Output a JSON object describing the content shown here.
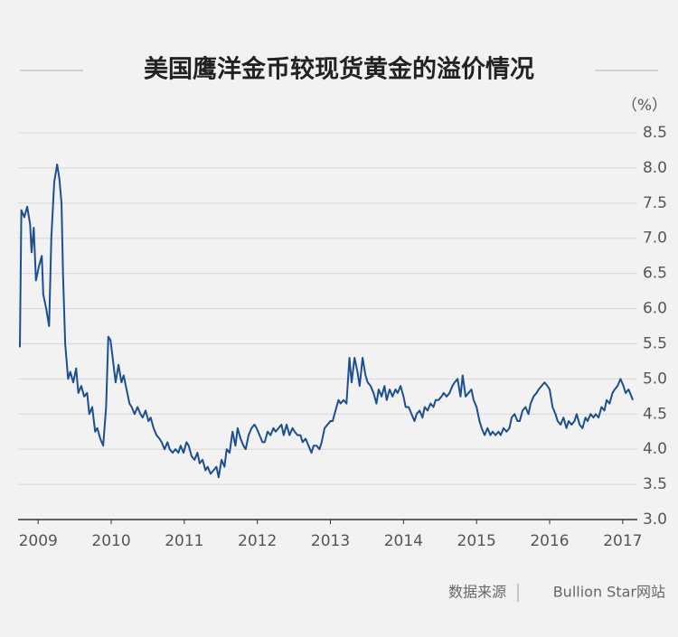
{
  "chart_data": {
    "type": "line",
    "title": "美国鹰洋金币较现货黄金的溢价情况",
    "y_label": "（%）",
    "source_label": "数据来源",
    "source": "Bullion Star网站",
    "color": "#1d4f8f",
    "grid": true,
    "xlim": [
      2008.75,
      2017.2
    ],
    "xticks": [
      2009,
      2010,
      2011,
      2012,
      2013,
      2014,
      2015,
      2016,
      2017
    ],
    "ylim": [
      3,
      8.5
    ],
    "yticks": [
      {
        "value": 3,
        "label": "3.0"
      },
      3.5,
      {
        "value": 4,
        "label": "4.0"
      },
      4.5,
      {
        "value": 5,
        "label": "5.0"
      },
      5.5,
      {
        "value": 6,
        "label": "6.0"
      },
      6.5,
      {
        "value": 7,
        "label": "7.0"
      },
      7.5,
      {
        "value": 8,
        "label": "8.0"
      },
      8.5
    ],
    "x": [
      2008.75,
      2008.77,
      2008.81,
      2008.85,
      2008.89,
      2008.91,
      2008.94,
      2008.97,
      2009.01,
      2009.05,
      2009.07,
      2009.11,
      2009.15,
      2009.18,
      2009.22,
      2009.26,
      2009.29,
      2009.32,
      2009.34,
      2009.37,
      2009.41,
      2009.44,
      2009.48,
      2009.52,
      2009.55,
      2009.59,
      2009.63,
      2009.67,
      2009.7,
      2009.74,
      2009.78,
      2009.81,
      2009.85,
      2009.89,
      2009.93,
      2009.96,
      2009.99,
      2010.02,
      2010.06,
      2010.1,
      2010.14,
      2010.17,
      2010.21,
      2010.25,
      2010.28,
      2010.32,
      2010.36,
      2010.4,
      2010.43,
      2010.47,
      2010.51,
      2010.54,
      2010.58,
      2010.62,
      2010.66,
      2010.69,
      2010.73,
      2010.77,
      2010.8,
      2010.84,
      2010.88,
      2010.92,
      2010.95,
      2010.99,
      2011.03,
      2011.06,
      2011.1,
      2011.14,
      2011.18,
      2011.21,
      2011.25,
      2011.29,
      2011.32,
      2011.36,
      2011.4,
      2011.44,
      2011.47,
      2011.51,
      2011.55,
      2011.58,
      2011.62,
      2011.66,
      2011.7,
      2011.73,
      2011.77,
      2011.81,
      2011.84,
      2011.88,
      2011.92,
      2011.96,
      2011.99,
      2012.03,
      2012.07,
      2012.1,
      2012.14,
      2012.18,
      2012.22,
      2012.25,
      2012.29,
      2012.33,
      2012.36,
      2012.4,
      2012.44,
      2012.48,
      2012.51,
      2012.55,
      2012.59,
      2012.62,
      2012.66,
      2012.7,
      2012.74,
      2012.77,
      2012.81,
      2012.85,
      2012.88,
      2012.92,
      2012.96,
      2013.0,
      2013.03,
      2013.07,
      2013.11,
      2013.14,
      2013.18,
      2013.22,
      2013.26,
      2013.29,
      2013.33,
      2013.37,
      2013.4,
      2013.44,
      2013.48,
      2013.51,
      2013.55,
      2013.59,
      2013.63,
      2013.66,
      2013.7,
      2013.74,
      2013.77,
      2013.81,
      2013.85,
      2013.89,
      2013.92,
      2013.96,
      2014.0,
      2014.03,
      2014.07,
      2014.11,
      2014.15,
      2014.18,
      2014.22,
      2014.26,
      2014.29,
      2014.33,
      2014.37,
      2014.41,
      2014.44,
      2014.48,
      2014.52,
      2014.55,
      2014.59,
      2014.63,
      2014.67,
      2014.7,
      2014.74,
      2014.78,
      2014.81,
      2014.85,
      2014.89,
      2014.93,
      2014.96,
      2015.0,
      2015.04,
      2015.07,
      2015.11,
      2015.15,
      2015.19,
      2015.22,
      2015.26,
      2015.3,
      2015.33,
      2015.37,
      2015.41,
      2015.45,
      2015.48,
      2015.52,
      2015.56,
      2015.59,
      2015.63,
      2015.67,
      2015.71,
      2015.74,
      2015.78,
      2015.82,
      2015.85,
      2015.89,
      2015.93,
      2015.97,
      2016.0,
      2016.04,
      2016.08,
      2016.11,
      2016.15,
      2016.19,
      2016.23,
      2016.26,
      2016.3,
      2016.34,
      2016.37,
      2016.41,
      2016.45,
      2016.49,
      2016.52,
      2016.56,
      2016.6,
      2016.63,
      2016.67,
      2016.71,
      2016.75,
      2016.78,
      2016.82,
      2016.86,
      2016.89,
      2016.93,
      2016.97,
      2017.01,
      2017.04,
      2017.08,
      2017.12,
      2017.14
    ],
    "values": [
      5.45,
      7.4,
      7.3,
      7.45,
      7.2,
      6.8,
      7.15,
      6.4,
      6.6,
      6.75,
      6.2,
      6.0,
      5.75,
      7.0,
      7.8,
      8.05,
      7.85,
      7.5,
      6.5,
      5.5,
      5.0,
      5.1,
      4.95,
      5.15,
      4.8,
      4.9,
      4.75,
      4.8,
      4.5,
      4.6,
      4.25,
      4.3,
      4.15,
      4.05,
      4.6,
      5.6,
      5.55,
      5.3,
      4.95,
      5.2,
      4.95,
      5.05,
      4.85,
      4.65,
      4.6,
      4.5,
      4.6,
      4.5,
      4.45,
      4.55,
      4.4,
      4.45,
      4.3,
      4.2,
      4.15,
      4.1,
      4.0,
      4.1,
      4.0,
      3.95,
      4.0,
      3.95,
      4.05,
      3.95,
      4.1,
      4.05,
      3.9,
      3.85,
      3.95,
      3.8,
      3.85,
      3.7,
      3.75,
      3.65,
      3.7,
      3.75,
      3.6,
      3.85,
      3.75,
      4.0,
      3.95,
      4.25,
      4.05,
      4.3,
      4.15,
      4.05,
      4.0,
      4.2,
      4.3,
      4.35,
      4.3,
      4.2,
      4.1,
      4.1,
      4.25,
      4.2,
      4.3,
      4.25,
      4.3,
      4.35,
      4.2,
      4.35,
      4.2,
      4.3,
      4.25,
      4.2,
      4.2,
      4.1,
      4.15,
      4.05,
      3.95,
      4.05,
      4.05,
      4.0,
      4.1,
      4.3,
      4.35,
      4.4,
      4.4,
      4.55,
      4.7,
      4.65,
      4.7,
      4.65,
      5.3,
      4.95,
      5.3,
      5.1,
      4.9,
      5.3,
      5.05,
      4.95,
      4.9,
      4.8,
      4.65,
      4.85,
      4.75,
      4.9,
      4.7,
      4.85,
      4.75,
      4.85,
      4.8,
      4.9,
      4.75,
      4.6,
      4.6,
      4.5,
      4.4,
      4.5,
      4.55,
      4.45,
      4.6,
      4.55,
      4.65,
      4.6,
      4.7,
      4.7,
      4.75,
      4.8,
      4.75,
      4.8,
      4.9,
      4.95,
      5.0,
      4.75,
      5.05,
      4.75,
      4.8,
      4.85,
      4.7,
      4.6,
      4.4,
      4.3,
      4.2,
      4.3,
      4.2,
      4.25,
      4.2,
      4.25,
      4.2,
      4.3,
      4.25,
      4.3,
      4.45,
      4.5,
      4.4,
      4.4,
      4.55,
      4.6,
      4.5,
      4.65,
      4.75,
      4.8,
      4.85,
      4.9,
      4.95,
      4.9,
      4.85,
      4.6,
      4.5,
      4.4,
      4.35,
      4.45,
      4.3,
      4.4,
      4.35,
      4.4,
      4.5,
      4.35,
      4.3,
      4.45,
      4.4,
      4.5,
      4.45,
      4.5,
      4.45,
      4.6,
      4.55,
      4.7,
      4.65,
      4.8,
      4.85,
      4.9,
      5.0,
      4.9,
      4.8,
      4.85,
      4.75,
      4.7
    ]
  }
}
